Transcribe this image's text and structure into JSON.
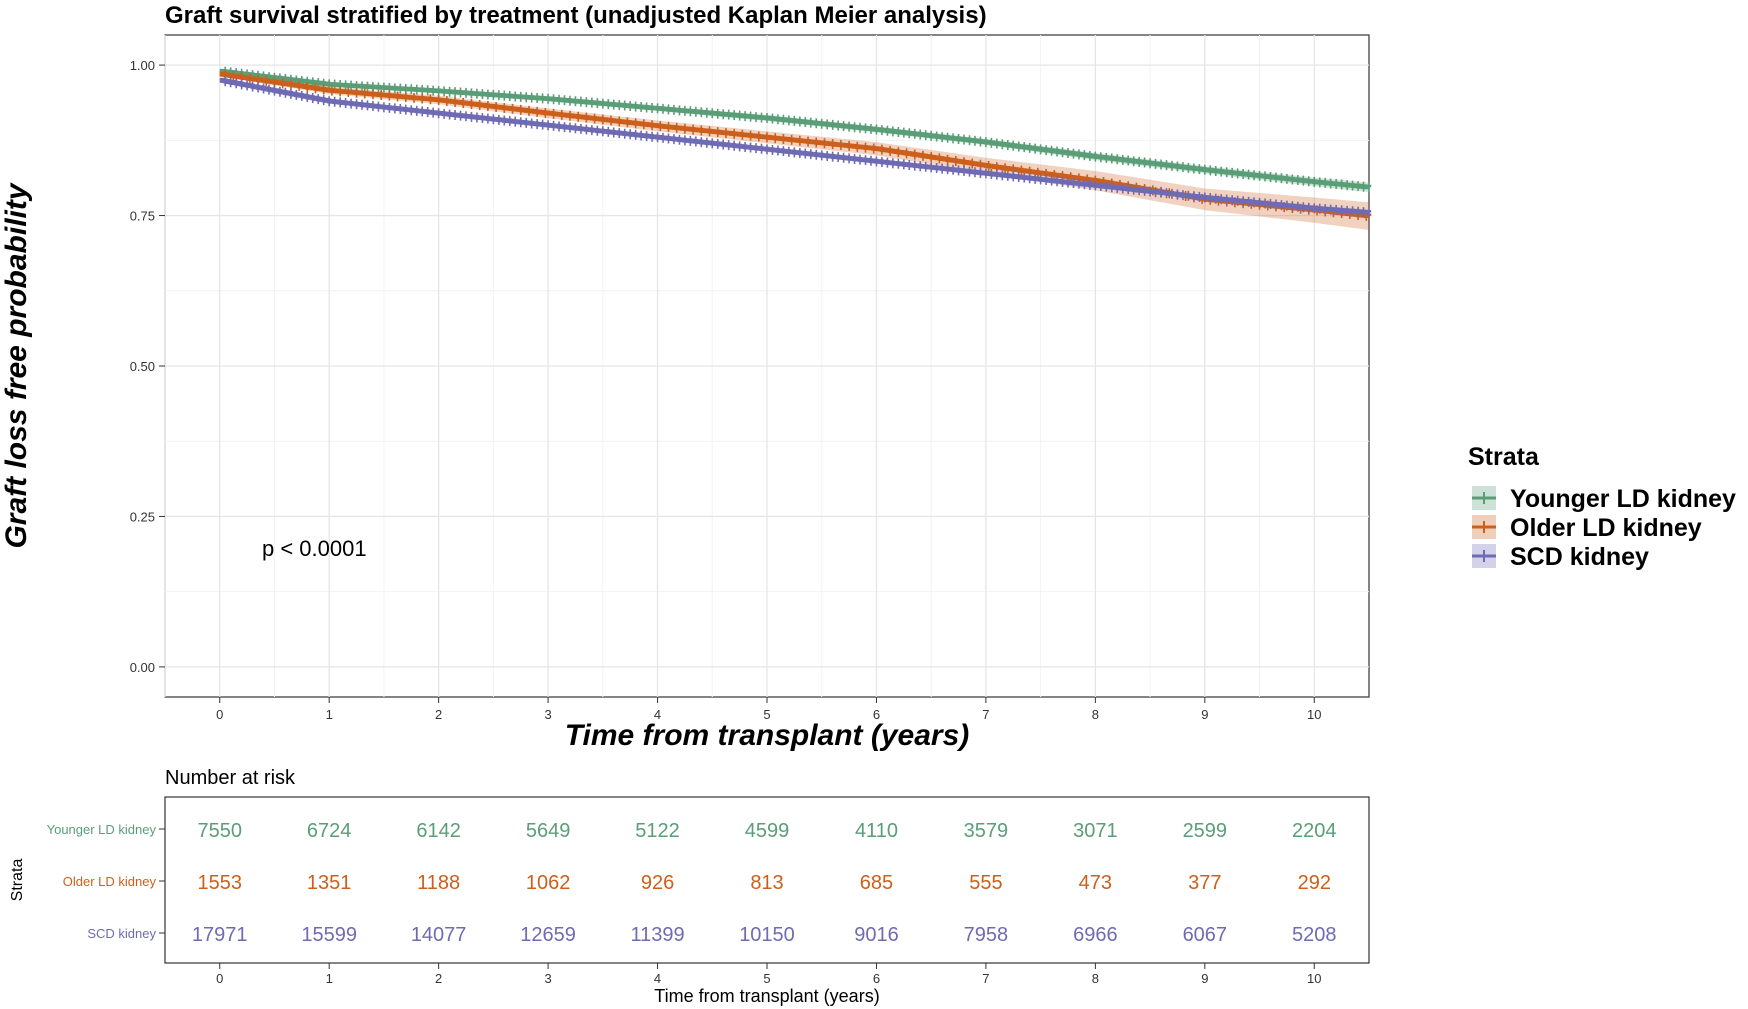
{
  "title": "Graft survival stratified by treatment (unadjusted Kaplan Meier analysis)",
  "pvalue": "p < 0.0001",
  "legend": {
    "title": "Strata",
    "items": [
      {
        "label": "Younger LD kidney",
        "color": "#5a9e78"
      },
      {
        "label": "Older LD kidney",
        "color": "#cc5f1c"
      },
      {
        "label": "SCD kidney",
        "color": "#6e6bb4"
      }
    ]
  },
  "risk_table": {
    "title": "Number at risk",
    "ylabel": "Strata",
    "xlabel": "Time from transplant (years)",
    "rows": [
      {
        "label": "Younger LD kidney",
        "color": "#5a9e78",
        "values": [
          "7550",
          "6724",
          "6142",
          "5649",
          "5122",
          "4599",
          "4110",
          "3579",
          "3071",
          "2599",
          "2204"
        ]
      },
      {
        "label": "Older LD kidney",
        "color": "#cc5f1c",
        "values": [
          "1553",
          "1351",
          "1188",
          "1062",
          "926",
          "813",
          "685",
          "555",
          "473",
          "377",
          "292"
        ]
      },
      {
        "label": "SCD kidney",
        "color": "#6e6bb4",
        "values": [
          "17971",
          "15599",
          "14077",
          "12659",
          "11399",
          "10150",
          "9016",
          "7958",
          "6966",
          "6067",
          "5208"
        ]
      }
    ]
  },
  "chart_data": {
    "type": "line",
    "title": "Graft survival stratified by treatment (unadjusted Kaplan Meier analysis)",
    "xlabel": "Time from transplant (years)",
    "ylabel": "Graft loss free probability",
    "xlim": [
      -0.5,
      10.5
    ],
    "ylim": [
      -0.05,
      1.05
    ],
    "xticks": [
      0,
      1,
      2,
      3,
      4,
      5,
      6,
      7,
      8,
      9,
      10
    ],
    "yticks": [
      0,
      0.25,
      0.5,
      0.75,
      1.0
    ],
    "ytick_labels": [
      "0.00",
      "0.25",
      "0.50",
      "0.75",
      "1.00"
    ],
    "grid": true,
    "legend_position": "right",
    "series": [
      {
        "name": "Younger LD kidney",
        "color": "#5a9e78",
        "x": [
          0,
          1,
          2,
          3,
          4,
          5,
          6,
          7,
          8,
          9,
          10,
          10.5
        ],
        "y": [
          0.99,
          0.968,
          0.957,
          0.944,
          0.928,
          0.912,
          0.893,
          0.872,
          0.848,
          0.826,
          0.806,
          0.797
        ],
        "ci_halfwidth": [
          0.003,
          0.003,
          0.004,
          0.004,
          0.004,
          0.005,
          0.005,
          0.005,
          0.006,
          0.006,
          0.007,
          0.008
        ]
      },
      {
        "name": "Older LD kidney",
        "color": "#cc5f1c",
        "x": [
          0,
          1,
          2,
          3,
          4,
          5,
          6,
          7,
          8,
          9,
          10,
          10.5
        ],
        "y": [
          0.985,
          0.958,
          0.942,
          0.92,
          0.899,
          0.88,
          0.861,
          0.833,
          0.808,
          0.777,
          0.759,
          0.749
        ],
        "ci_halfwidth": [
          0.004,
          0.006,
          0.007,
          0.008,
          0.009,
          0.01,
          0.011,
          0.013,
          0.016,
          0.018,
          0.021,
          0.023
        ]
      },
      {
        "name": "SCD kidney",
        "color": "#6e6bb4",
        "x": [
          0,
          1,
          2,
          3,
          4,
          5,
          6,
          7,
          8,
          9,
          10,
          10.5
        ],
        "y": [
          0.975,
          0.94,
          0.92,
          0.9,
          0.88,
          0.86,
          0.84,
          0.82,
          0.8,
          0.78,
          0.762,
          0.755
        ],
        "ci_halfwidth": [
          0.002,
          0.002,
          0.002,
          0.003,
          0.003,
          0.003,
          0.003,
          0.004,
          0.004,
          0.004,
          0.005,
          0.005
        ]
      }
    ]
  }
}
